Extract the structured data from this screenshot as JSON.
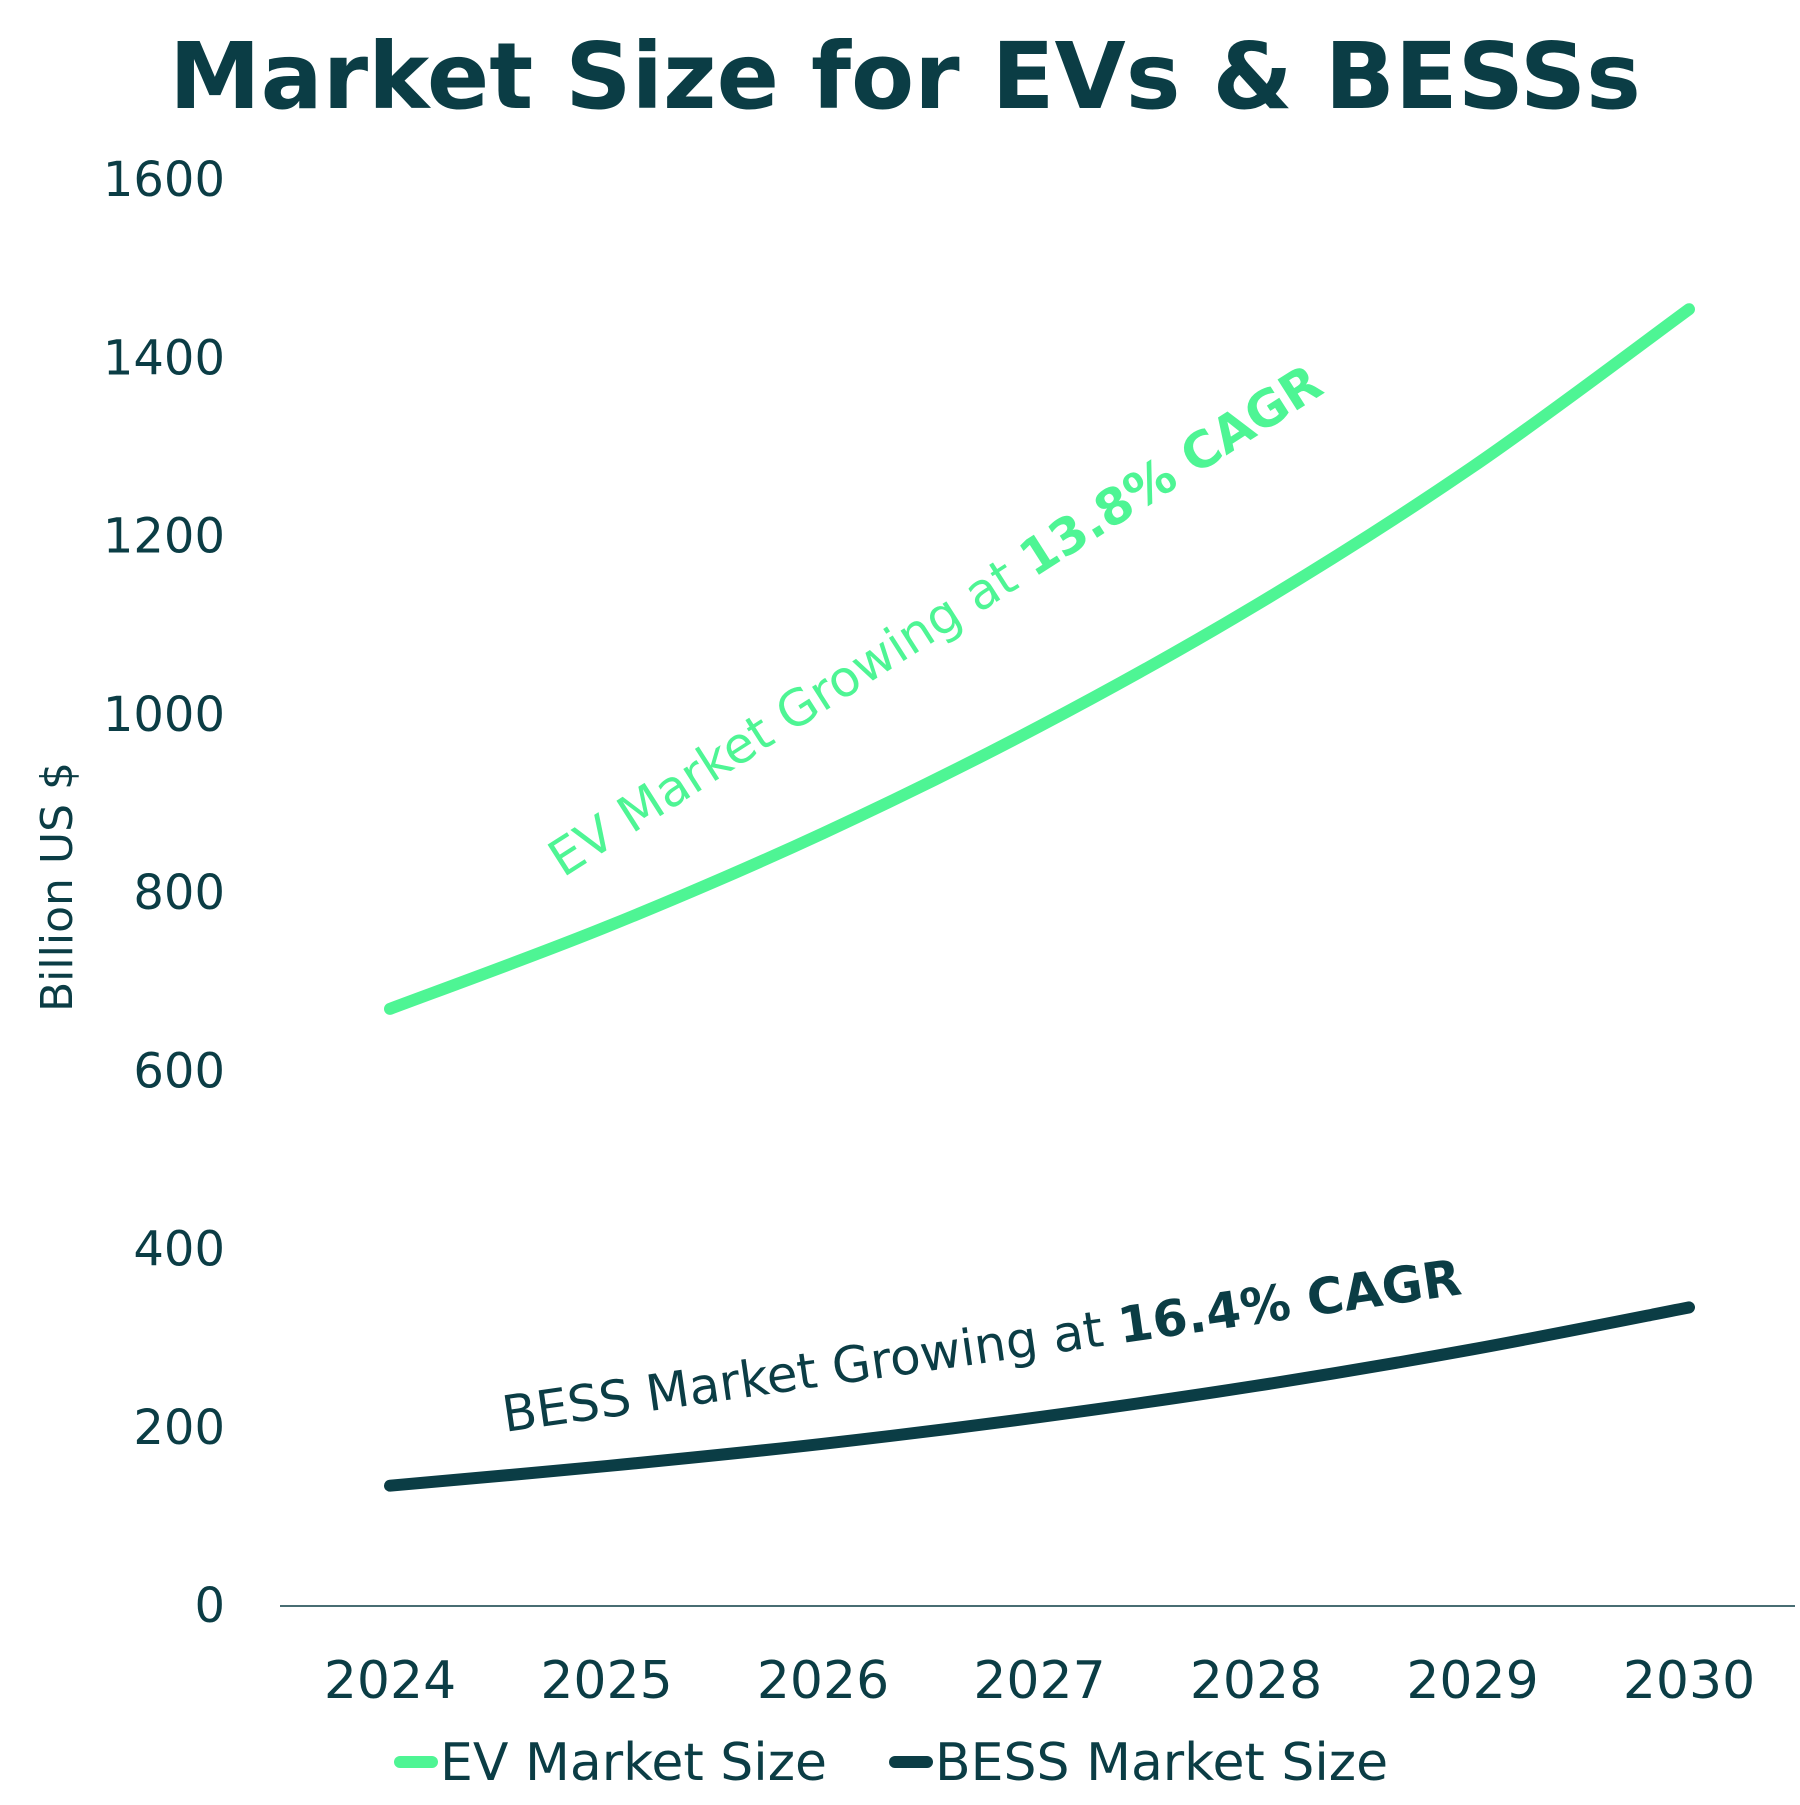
{
  "chart_data": {
    "type": "line",
    "title": "Market Size for EVs & BESSs",
    "ylabel": "Billion US $",
    "xlabel": "",
    "categories": [
      "2024",
      "2025",
      "2026",
      "2027",
      "2028",
      "2029",
      "2030"
    ],
    "ylim": [
      0,
      1600
    ],
    "yticks": [
      0,
      200,
      400,
      600,
      800,
      1000,
      1200,
      1400,
      1600
    ],
    "grid": false,
    "legend_position": "bottom",
    "series": [
      {
        "name": "EV Market Size",
        "color": "#4ef594",
        "values": [
          670,
          762,
          867,
          987,
          1123,
          1278,
          1455
        ]
      },
      {
        "name": "BESS Market Size",
        "color": "#0b3d45",
        "values": [
          135,
          157,
          182,
          212,
          247,
          288,
          335
        ]
      }
    ],
    "annotations": [
      {
        "series": "EV Market Size",
        "text": "EV Market Growing at ",
        "emphasis": "13.8% CAGR",
        "color": "#4ef594"
      },
      {
        "series": "BESS Market Size",
        "text": "BESS Market Growing at ",
        "emphasis": "16.4% CAGR",
        "color": "#0b3d45"
      }
    ]
  },
  "colors": {
    "text": "#0b3d45",
    "axis": "#0b3d45",
    "background": "#ffffff"
  }
}
